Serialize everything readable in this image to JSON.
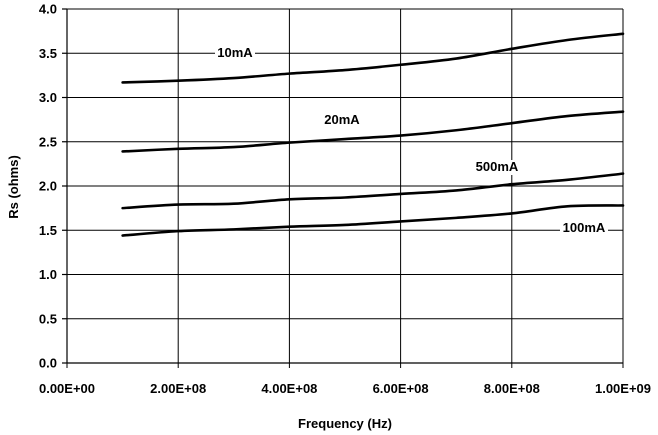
{
  "chart_data": {
    "type": "line",
    "title": "",
    "xlabel": "Frequency (Hz)",
    "ylabel": "Rs (ohms)",
    "xlim": [
      0,
      1000000000
    ],
    "ylim": [
      0,
      4.0
    ],
    "grid": true,
    "legend": "inline labels",
    "x_tick_labels": [
      "0.00E+00",
      "2.00E+08",
      "4.00E+08",
      "6.00E+08",
      "8.00E+08",
      "1.00E+09"
    ],
    "y_tick_labels": [
      "0.0",
      "0.5",
      "1.0",
      "1.5",
      "2.0",
      "2.5",
      "3.0",
      "3.5",
      "4.0"
    ],
    "x": [
      100000000,
      200000000,
      300000000,
      400000000,
      500000000,
      600000000,
      700000000,
      800000000,
      900000000,
      1000000000
    ],
    "series": [
      {
        "name": "10mA",
        "values": [
          3.17,
          3.19,
          3.22,
          3.27,
          3.31,
          3.37,
          3.44,
          3.55,
          3.65,
          3.72
        ]
      },
      {
        "name": "20mA",
        "values": [
          2.39,
          2.42,
          2.44,
          2.49,
          2.53,
          2.57,
          2.63,
          2.71,
          2.79,
          2.84
        ]
      },
      {
        "name": "500mA",
        "values": [
          1.75,
          1.79,
          1.8,
          1.85,
          1.87,
          1.91,
          1.95,
          2.02,
          2.07,
          2.14
        ]
      },
      {
        "name": "100mA",
        "values": [
          1.44,
          1.49,
          1.51,
          1.54,
          1.56,
          1.6,
          1.64,
          1.69,
          1.77,
          1.78
        ]
      }
    ]
  }
}
